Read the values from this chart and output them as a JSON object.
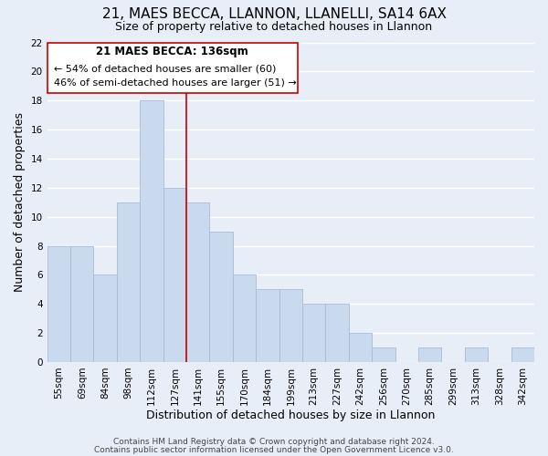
{
  "title": "21, MAES BECCA, LLANNON, LLANELLI, SA14 6AX",
  "subtitle": "Size of property relative to detached houses in Llannon",
  "xlabel": "Distribution of detached houses by size in Llannon",
  "ylabel": "Number of detached properties",
  "bar_labels": [
    "55sqm",
    "69sqm",
    "84sqm",
    "98sqm",
    "112sqm",
    "127sqm",
    "141sqm",
    "155sqm",
    "170sqm",
    "184sqm",
    "199sqm",
    "213sqm",
    "227sqm",
    "242sqm",
    "256sqm",
    "270sqm",
    "285sqm",
    "299sqm",
    "313sqm",
    "328sqm",
    "342sqm"
  ],
  "bar_values": [
    8,
    8,
    6,
    11,
    18,
    12,
    11,
    9,
    6,
    5,
    5,
    4,
    4,
    2,
    1,
    0,
    1,
    0,
    1,
    0,
    1
  ],
  "bar_color": "#c9d9ee",
  "bar_edge_color": "#aabbd4",
  "annotation_box_edge_color": "#cc0000",
  "annotation_text_line1": "21 MAES BECCA: 136sqm",
  "annotation_text_line2": "← 54% of detached houses are smaller (60)",
  "annotation_text_line3": "46% of semi-detached houses are larger (51) →",
  "red_line_x": 5.5,
  "ylim": [
    0,
    22
  ],
  "yticks": [
    0,
    2,
    4,
    6,
    8,
    10,
    12,
    14,
    16,
    18,
    20,
    22
  ],
  "footer_line1": "Contains HM Land Registry data © Crown copyright and database right 2024.",
  "footer_line2": "Contains public sector information licensed under the Open Government Licence v3.0.",
  "background_color": "#e8eef8",
  "plot_background_color": "#e8eef8",
  "grid_color": "#ffffff",
  "title_fontsize": 11,
  "subtitle_fontsize": 9,
  "axis_label_fontsize": 9,
  "tick_fontsize": 7.5,
  "footer_fontsize": 6.5
}
